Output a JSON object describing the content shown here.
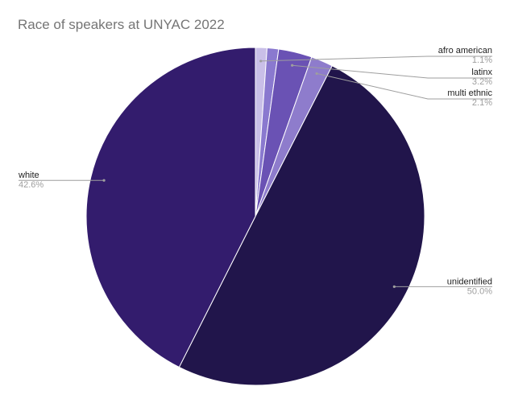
{
  "chart_data": {
    "type": "pie",
    "title": "Race of speakers at UNYAC 2022",
    "slices": [
      {
        "label": "afro american",
        "value": 1.1,
        "value_label": "1.1%",
        "color": "#c9bfe8"
      },
      {
        "label": "",
        "value": 1.1,
        "value_label": "",
        "color": "#8a79cf"
      },
      {
        "label": "latinx",
        "value": 3.2,
        "value_label": "3.2%",
        "color": "#6a52b4"
      },
      {
        "label": "multi ethnic",
        "value": 2.1,
        "value_label": "2.1%",
        "color": "#8e7ccc"
      },
      {
        "label": "unidentified",
        "value": 50.0,
        "value_label": "50.0%",
        "color": "#21154b"
      },
      {
        "label": "white",
        "value": 42.6,
        "value_label": "42.6%",
        "color": "#331c6d"
      }
    ],
    "start_angle_deg": 0,
    "direction": "clockwise",
    "legend": "labels-with-leader-lines"
  }
}
